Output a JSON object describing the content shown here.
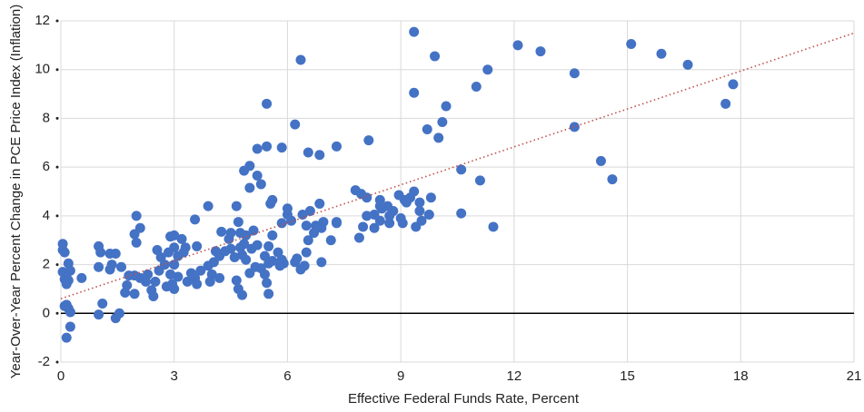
{
  "chart_data": {
    "type": "scatter",
    "xlabel": "Effective Federal Funds Rate, Percent",
    "ylabel": "Year-Over-Year Percent Change in PCE Price Index (Inflation)",
    "color": "#4472c4",
    "xlim": [
      0,
      21
    ],
    "xticks": [
      0,
      3,
      6,
      9,
      12,
      15,
      18,
      21
    ],
    "ylim": [
      -2,
      12
    ],
    "yticks": [
      -2,
      0,
      2,
      4,
      6,
      8,
      10,
      12
    ],
    "grid": true,
    "trendline": {
      "x": [
        0,
        21
      ],
      "values": [
        0.6,
        11.5
      ],
      "color": "#c0504d"
    },
    "x": [
      9.35,
      12.1,
      12.7,
      15.1,
      15.9,
      16.6,
      13.6,
      17.8,
      17.6,
      6.35,
      9.9,
      11.3,
      11.0,
      9.35,
      10.2,
      10.1,
      9.7,
      10.0,
      13.6,
      14.3,
      14.6,
      10.6,
      11.1,
      10.6,
      11.45,
      5.45,
      6.2,
      8.15,
      7.3,
      5.45,
      5.85,
      5.2,
      6.55,
      6.85,
      5.0,
      4.85,
      5.2,
      5.3,
      5.0,
      5.55,
      5.6,
      4.65,
      6.0,
      6.85,
      6.6,
      6.4,
      6.0,
      6.1,
      5.85,
      6.5,
      6.75,
      6.95,
      7.3,
      6.9,
      7.8,
      7.95,
      8.45,
      8.65,
      8.95,
      9.1,
      9.35,
      9.5,
      9.25,
      9.8,
      9.5,
      9.75,
      9.55,
      9.4,
      8.5,
      8.7,
      8.3,
      8.1,
      8.0,
      7.9,
      8.3,
      8.7,
      9.0,
      9.05,
      8.45,
      8.1,
      8.45,
      8.8,
      9.15,
      3.55,
      3.9,
      4.25,
      4.5,
      4.7,
      4.75,
      4.9,
      5.1,
      5.2,
      5.5,
      5.6,
      5.75,
      5.85,
      5.9,
      6.2,
      6.45,
      6.5,
      6.25,
      6.35,
      6.9,
      7.15,
      5.4,
      5.5,
      5.3,
      5.05,
      4.85,
      4.6,
      4.5,
      4.8,
      5.0,
      5.15,
      5.4,
      5.45,
      5.5,
      4.65,
      4.7,
      4.8,
      4.1,
      4.05,
      3.9,
      4.0,
      3.95,
      4.2,
      3.7,
      3.55,
      3.6,
      3.35,
      3.45,
      3.6,
      3.3,
      3.2,
      3.25,
      3.1,
      3.0,
      2.9,
      3.0,
      2.85,
      2.65,
      2.75,
      3.0,
      3.1,
      2.9,
      2.95,
      2.8,
      3.0,
      2.6,
      2.5,
      2.4,
      2.25,
      2.45,
      2.1,
      1.95,
      1.8,
      1.95,
      1.7,
      1.75,
      2.0,
      2.1,
      1.95,
      2.0,
      2.55,
      2.3,
      1.45,
      1.3,
      1.35,
      1.6,
      1.3,
      1.0,
      1.05,
      1.0,
      1.1,
      1.0,
      1.45,
      1.55,
      0.55,
      0.2,
      0.25,
      0.15,
      0.1,
      0.15,
      0.05,
      0.05,
      0.1,
      0.15,
      0.2,
      0.25,
      0.15,
      0.25,
      0.05,
      0.2,
      0.1,
      5.8,
      5.6,
      6.55,
      6.7,
      7.3,
      4.35,
      4.2,
      4.9,
      4.75,
      4.45
    ],
    "values": [
      11.55,
      11.0,
      10.75,
      11.05,
      10.65,
      10.2,
      9.85,
      9.4,
      8.6,
      10.4,
      10.55,
      10.0,
      9.3,
      9.05,
      8.5,
      7.85,
      7.55,
      7.2,
      7.65,
      6.25,
      5.5,
      5.9,
      5.45,
      4.1,
      3.55,
      8.6,
      7.75,
      7.1,
      6.85,
      6.85,
      6.8,
      6.75,
      6.6,
      6.5,
      6.05,
      5.85,
      5.65,
      5.3,
      5.15,
      4.5,
      4.65,
      4.4,
      4.3,
      4.5,
      4.2,
      4.05,
      4.05,
      3.8,
      3.7,
      3.6,
      3.6,
      3.75,
      3.75,
      3.5,
      5.05,
      4.9,
      4.65,
      4.4,
      4.85,
      4.65,
      5.0,
      4.55,
      4.75,
      4.75,
      4.2,
      4.05,
      3.8,
      3.55,
      4.3,
      4.0,
      4.05,
      4.0,
      3.55,
      3.1,
      3.5,
      3.7,
      3.9,
      3.7,
      3.8,
      4.75,
      4.4,
      4.2,
      4.55,
      3.85,
      4.4,
      3.35,
      3.3,
      3.75,
      3.3,
      3.2,
      3.4,
      2.8,
      2.75,
      3.2,
      2.5,
      2.2,
      2.05,
      2.1,
      1.95,
      2.5,
      2.25,
      1.8,
      2.1,
      3.0,
      2.35,
      2.05,
      1.85,
      2.65,
      2.85,
      2.3,
      2.65,
      2.4,
      1.65,
      1.9,
      1.6,
      1.25,
      0.8,
      1.35,
      1.0,
      0.75,
      2.55,
      2.1,
      1.95,
      1.6,
      1.3,
      1.45,
      1.75,
      1.45,
      1.2,
      1.3,
      1.65,
      2.75,
      2.7,
      3.05,
      2.5,
      2.35,
      2.7,
      3.15,
      3.2,
      2.5,
      2.3,
      2.0,
      2.0,
      1.5,
      1.6,
      1.2,
      1.1,
      1.0,
      1.75,
      1.3,
      0.95,
      1.3,
      0.7,
      1.45,
      1.55,
      1.55,
      0.8,
      0.85,
      1.15,
      4.0,
      3.5,
      3.25,
      2.9,
      2.6,
      1.6,
      2.45,
      2.45,
      2.0,
      1.9,
      1.8,
      2.75,
      2.5,
      1.9,
      0.4,
      -0.05,
      -0.2,
      0.0,
      1.45,
      2.05,
      1.75,
      1.6,
      1.4,
      1.2,
      2.85,
      2.6,
      2.5,
      0.35,
      0.2,
      0.05,
      -1.0,
      -0.55,
      1.7,
      1.35,
      0.3,
      1.95,
      2.15,
      3.0,
      3.3,
      3.7,
      2.55,
      2.35,
      2.2,
      2.7,
      3.05
    ]
  }
}
